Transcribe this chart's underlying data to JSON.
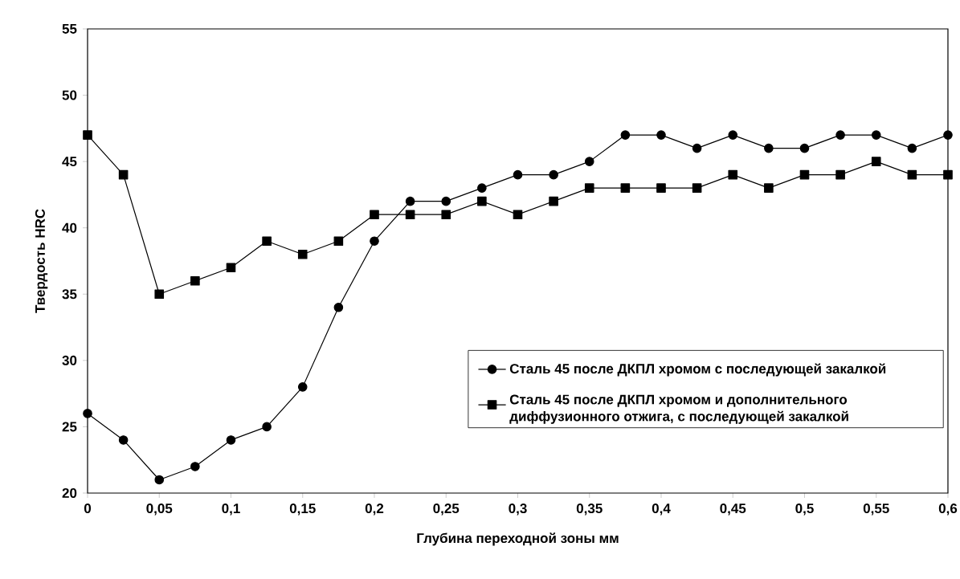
{
  "chart_data": {
    "type": "line",
    "xlabel": "Глубина переходной зоны мм",
    "ylabel": "Твердость HRC",
    "x": [
      0,
      0.025,
      0.05,
      0.075,
      0.1,
      0.125,
      0.15,
      0.175,
      0.2,
      0.225,
      0.25,
      0.275,
      0.3,
      0.325,
      0.35,
      0.375,
      0.4,
      0.425,
      0.45,
      0.475,
      0.5,
      0.525,
      0.55,
      0.575,
      0.6
    ],
    "series": [
      {
        "name": "Сталь 45 после ДКПЛ хромом с последующей закалкой",
        "color": "#000000",
        "marker": "circle",
        "values": [
          26,
          24,
          21,
          22,
          24,
          25,
          28,
          34,
          39,
          42,
          42,
          43,
          44,
          44,
          45,
          47,
          47,
          46,
          47,
          46,
          46,
          47,
          47,
          46,
          47
        ]
      },
      {
        "name": "Сталь 45 после ДКПЛ хромом и дополнительного диффузионного отжига, с последующей закалкой",
        "color": "#000000",
        "marker": "square",
        "values": [
          47,
          44,
          35,
          36,
          37,
          39,
          38,
          39,
          41,
          41,
          41,
          42,
          41,
          42,
          43,
          43,
          43,
          43,
          44,
          43,
          44,
          44,
          45,
          44,
          44
        ]
      }
    ],
    "xlim": [
      0,
      0.6
    ],
    "ylim": [
      20,
      55
    ],
    "xticks": [
      0,
      {
        "value": 0.05,
        "label": "0,05"
      },
      {
        "value": 0.1,
        "label": "0,1"
      },
      {
        "value": 0.15,
        "label": "0,15"
      },
      {
        "value": 0.2,
        "label": "0,2"
      },
      {
        "value": 0.25,
        "label": "0,25"
      },
      {
        "value": 0.3,
        "label": "0,3"
      },
      {
        "value": 0.35,
        "label": "0,35"
      },
      {
        "value": 0.4,
        "label": "0,4"
      },
      {
        "value": 0.45,
        "label": "0,45"
      },
      {
        "value": 0.5,
        "label": "0,5"
      },
      {
        "value": 0.55,
        "label": "0,55"
      },
      {
        "value": 0.6,
        "label": "0,6"
      }
    ],
    "yticks": [
      20,
      25,
      30,
      35,
      40,
      45,
      50,
      55
    ],
    "grid": false,
    "legend": "bottom right",
    "line_style": "solid"
  }
}
